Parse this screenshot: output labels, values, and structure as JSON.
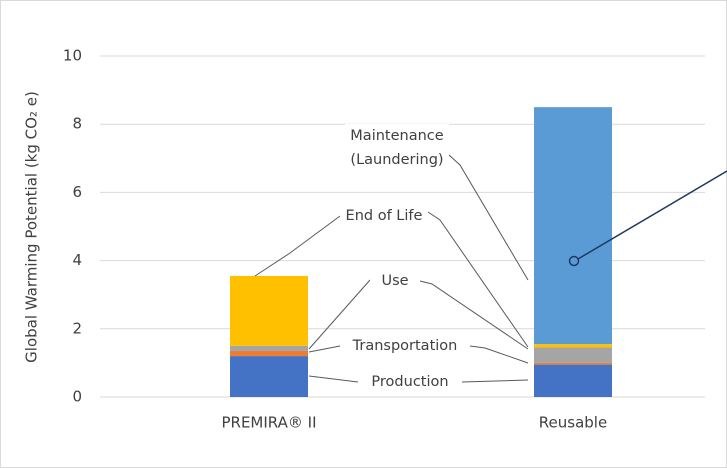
{
  "chart_data": {
    "type": "stacked_bar",
    "y_label": "Global Warming Potential (kg CO₂ e)",
    "categories": [
      "PREMIRA® II",
      "Reusable"
    ],
    "series": [
      {
        "name": "Production",
        "color": "#4472c4",
        "values": [
          1.2,
          0.95
        ]
      },
      {
        "name": "Transportation",
        "color": "#ed7d31",
        "values": [
          0.15,
          0.05
        ]
      },
      {
        "name": "Use",
        "color": "#a5a5a5",
        "values": [
          0.15,
          0.45
        ]
      },
      {
        "name": "End of Life",
        "color": "#ffc000",
        "values": [
          2.05,
          0.1
        ]
      },
      {
        "name": "Maintenance (Laundering)",
        "color": "#5b9bd5",
        "values": [
          0,
          6.95
        ]
      }
    ],
    "ylim": [
      0,
      10
    ],
    "yticks": [
      0,
      2,
      4,
      6,
      8,
      10
    ],
    "grid": true
  }
}
